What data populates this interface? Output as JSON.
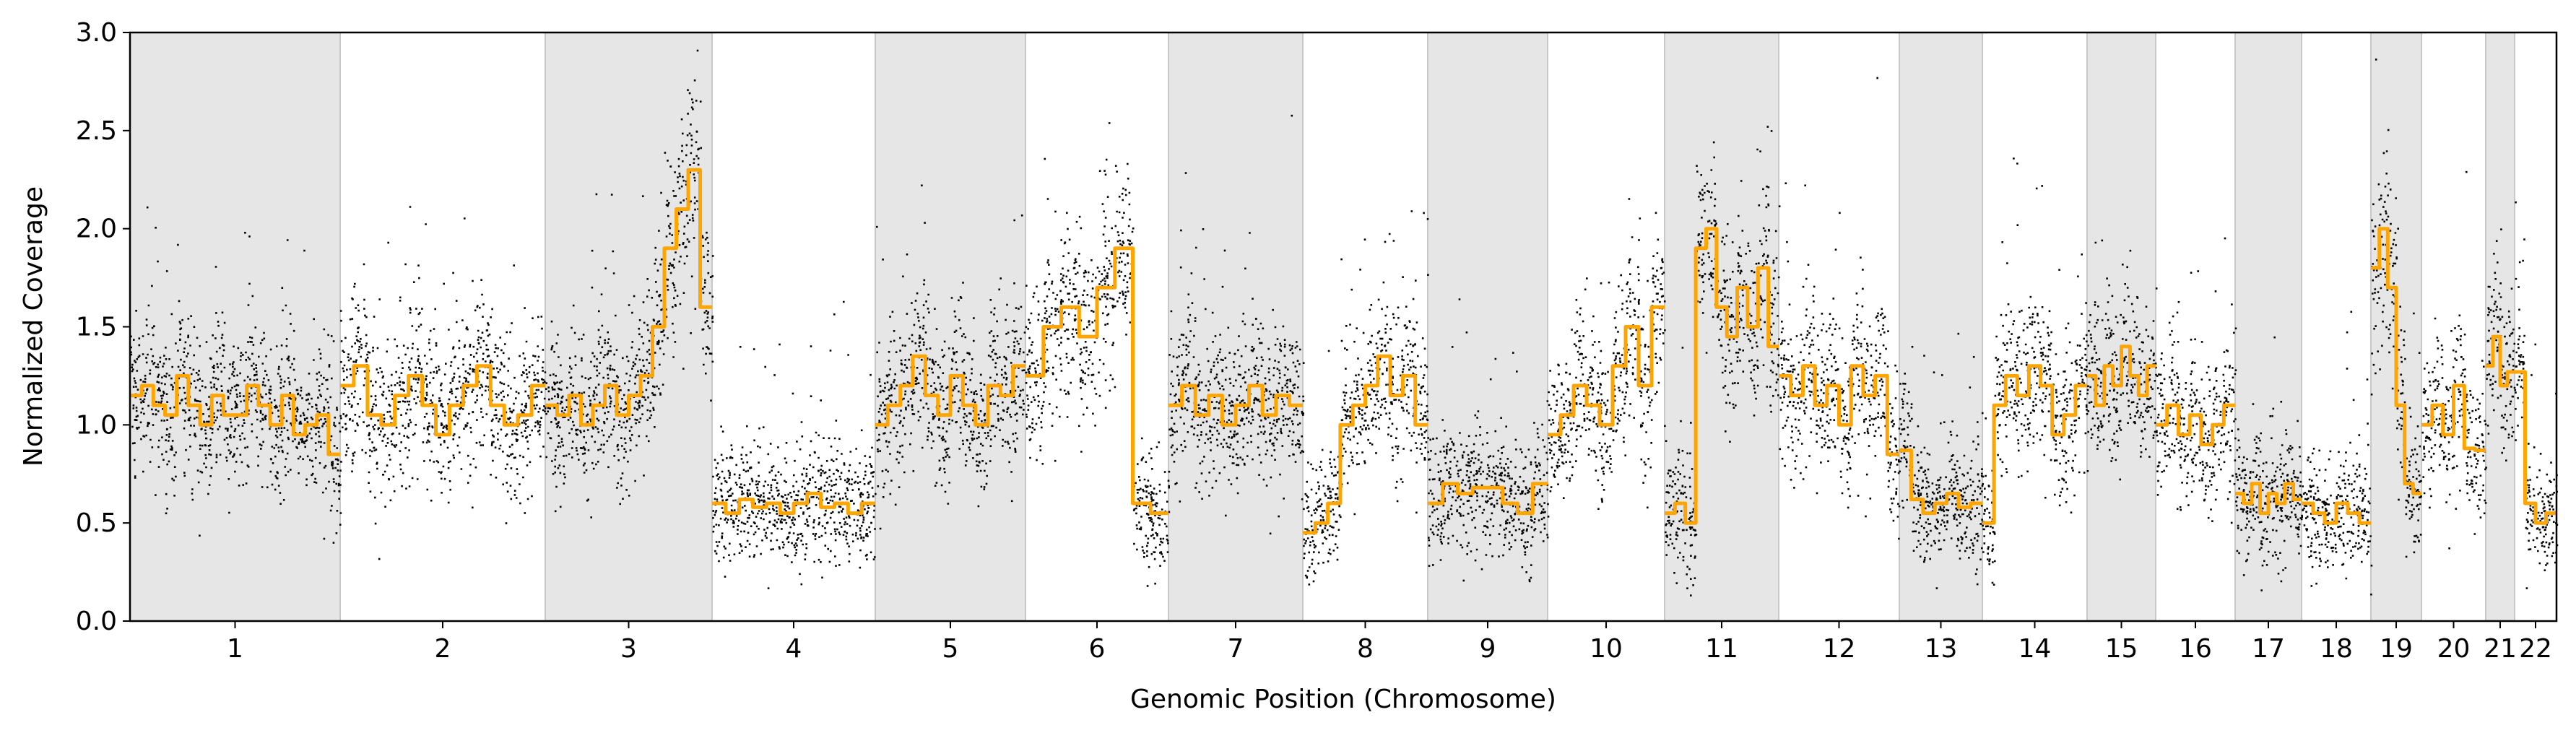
{
  "chart_data": {
    "type": "scatter",
    "title": "",
    "xlabel": "Genomic Position (Chromosome)",
    "ylabel": "Normalized Coverage",
    "ylim": [
      0.0,
      3.0
    ],
    "yticks": [
      0.0,
      0.5,
      1.0,
      1.5,
      2.0,
      2.5,
      3.0
    ],
    "ytick_labels": [
      "0.0",
      "0.5",
      "1.0",
      "1.5",
      "2.0",
      "2.5",
      "3.0"
    ],
    "grid": false,
    "legend": "none",
    "colors": {
      "points": "#000000",
      "segments": "#FFA500",
      "band": "#E6E6E6",
      "band_edge": "#C8C8C8"
    },
    "chromosomes": [
      {
        "name": "1",
        "shaded": true
      },
      {
        "name": "2",
        "shaded": false
      },
      {
        "name": "3",
        "shaded": true
      },
      {
        "name": "4",
        "shaded": false
      },
      {
        "name": "5",
        "shaded": true
      },
      {
        "name": "6",
        "shaded": false
      },
      {
        "name": "7",
        "shaded": true
      },
      {
        "name": "8",
        "shaded": false
      },
      {
        "name": "9",
        "shaded": true
      },
      {
        "name": "10",
        "shaded": false
      },
      {
        "name": "11",
        "shaded": true
      },
      {
        "name": "12",
        "shaded": false
      },
      {
        "name": "13",
        "shaded": true
      },
      {
        "name": "14",
        "shaded": false
      },
      {
        "name": "15",
        "shaded": true
      },
      {
        "name": "16",
        "shaded": false
      },
      {
        "name": "17",
        "shaded": true
      },
      {
        "name": "18",
        "shaded": false
      },
      {
        "name": "19",
        "shaded": true
      },
      {
        "name": "20",
        "shaded": false
      },
      {
        "name": "21",
        "shaded": true
      },
      {
        "name": "22",
        "shaded": false
      }
    ],
    "segments": [
      {
        "chromosome": "1",
        "levels": [
          1.15,
          1.2,
          1.1,
          1.05,
          1.25,
          1.1,
          1.0,
          1.15,
          1.05,
          1.05,
          1.2,
          1.1,
          1.0,
          1.15,
          0.95,
          1.0,
          1.05,
          0.85
        ]
      },
      {
        "chromosome": "2",
        "levels": [
          1.2,
          1.3,
          1.05,
          1.0,
          1.15,
          1.25,
          1.1,
          0.95,
          1.1,
          1.2,
          1.3,
          1.1,
          1.0,
          1.05,
          1.2
        ]
      },
      {
        "chromosome": "3",
        "levels": [
          1.1,
          1.05,
          1.15,
          1.0,
          1.1,
          1.2,
          1.05,
          1.15,
          1.25,
          1.5,
          1.9,
          2.1,
          2.3,
          1.6
        ]
      },
      {
        "chromosome": "4",
        "levels": [
          0.6,
          0.55,
          0.62,
          0.58,
          0.6,
          0.55,
          0.6,
          0.65,
          0.58,
          0.6,
          0.55,
          0.6
        ]
      },
      {
        "chromosome": "5",
        "levels": [
          1.0,
          1.1,
          1.2,
          1.35,
          1.15,
          1.05,
          1.25,
          1.1,
          1.0,
          1.2,
          1.15,
          1.3
        ]
      },
      {
        "chromosome": "6",
        "levels": [
          1.25,
          1.5,
          1.6,
          1.45,
          1.7,
          1.9,
          0.6,
          0.55
        ]
      },
      {
        "chromosome": "7",
        "levels": [
          1.1,
          1.2,
          1.05,
          1.15,
          1.0,
          1.1,
          1.2,
          1.05,
          1.15,
          1.1
        ]
      },
      {
        "chromosome": "8",
        "levels": [
          0.45,
          0.5,
          0.6,
          1.0,
          1.1,
          1.2,
          1.35,
          1.15,
          1.25,
          1.0
        ]
      },
      {
        "chromosome": "9",
        "levels": [
          0.6,
          0.7,
          0.65,
          0.68,
          0.68,
          0.6,
          0.55,
          0.7
        ]
      },
      {
        "chromosome": "10",
        "levels": [
          0.95,
          1.05,
          1.2,
          1.1,
          1.0,
          1.3,
          1.5,
          1.2,
          1.6
        ]
      },
      {
        "chromosome": "11",
        "levels": [
          0.55,
          0.6,
          0.5,
          1.9,
          2.0,
          1.6,
          1.45,
          1.7,
          1.5,
          1.8,
          1.4
        ]
      },
      {
        "chromosome": "12",
        "levels": [
          1.25,
          1.15,
          1.3,
          1.1,
          1.2,
          1.0,
          1.3,
          1.15,
          1.25,
          0.85
        ]
      },
      {
        "chromosome": "13",
        "levels": [
          0.87,
          0.62,
          0.55,
          0.6,
          0.65,
          0.58,
          0.6
        ]
      },
      {
        "chromosome": "14",
        "levels": [
          0.5,
          1.1,
          1.25,
          1.15,
          1.3,
          1.2,
          0.95,
          1.05,
          1.2
        ]
      },
      {
        "chromosome": "15",
        "levels": [
          1.25,
          1.1,
          1.3,
          1.2,
          1.4,
          1.25,
          1.15,
          1.3
        ]
      },
      {
        "chromosome": "16",
        "levels": [
          1.0,
          1.1,
          0.95,
          1.05,
          0.9,
          1.0,
          1.1
        ]
      },
      {
        "chromosome": "17",
        "levels": [
          0.65,
          0.6,
          0.7,
          0.55,
          0.65,
          0.6,
          0.7,
          0.62
        ]
      },
      {
        "chromosome": "18",
        "levels": [
          0.6,
          0.55,
          0.5,
          0.6,
          0.55,
          0.5
        ]
      },
      {
        "chromosome": "19",
        "levels": [
          1.8,
          2.0,
          1.7,
          1.1,
          0.7,
          0.65
        ]
      },
      {
        "chromosome": "20",
        "levels": [
          1.0,
          1.1,
          0.95,
          1.2,
          0.88,
          0.87
        ]
      },
      {
        "chromosome": "21",
        "levels": [
          1.3,
          1.45,
          1.2,
          1.27
        ]
      },
      {
        "chromosome": "22",
        "levels": [
          1.27,
          0.6,
          0.5,
          0.55
        ]
      }
    ]
  }
}
